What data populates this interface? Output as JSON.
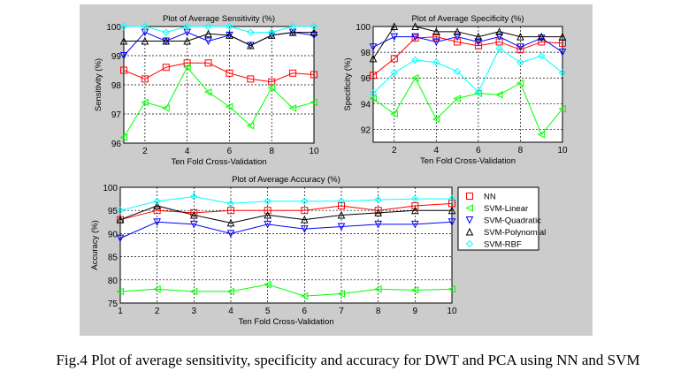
{
  "caption": "Fig.4 Plot of average sensitivity, specificity and accuracy for DWT and PCA using NN and SVM",
  "series_styles": [
    {
      "name": "NN",
      "color": "#ff0000",
      "marker": "square"
    },
    {
      "name": "SVM-Linear",
      "color": "#00ff00",
      "marker": "triangle-left"
    },
    {
      "name": "SVM-Quadratic",
      "color": "#0000ff",
      "marker": "triangle-down"
    },
    {
      "name": "SVM-Polynomial",
      "color": "#000000",
      "marker": "triangle-up"
    },
    {
      "name": "SVM-RBF",
      "color": "#00ffff",
      "marker": "diamond"
    }
  ],
  "colors": {
    "figure_background": "#cccccc",
    "axes_background": "#ffffff"
  },
  "chart_data": [
    {
      "type": "line",
      "title": "Plot of Average Sensitivity (%)",
      "xlabel": "Ten Fold Cross-Validation",
      "ylabel": "Sensitivity (%)",
      "xlim": [
        1,
        10
      ],
      "ylim": [
        96,
        100
      ],
      "xticks": [
        2,
        4,
        6,
        8,
        10
      ],
      "yticks": [
        96,
        97,
        98,
        99,
        100
      ],
      "grid": true,
      "x": [
        1,
        2,
        3,
        4,
        5,
        6,
        7,
        8,
        9,
        10
      ],
      "series": [
        {
          "name": "NN",
          "values": [
            98.5,
            98.2,
            98.6,
            98.75,
            98.75,
            98.4,
            98.2,
            98.1,
            98.4,
            98.35
          ]
        },
        {
          "name": "SVM-Linear",
          "values": [
            96.2,
            97.4,
            97.2,
            98.6,
            97.75,
            97.25,
            96.6,
            97.9,
            97.2,
            97.4
          ]
        },
        {
          "name": "SVM-Quadratic",
          "values": [
            99.0,
            99.8,
            99.5,
            99.8,
            99.5,
            99.7,
            99.35,
            99.7,
            99.8,
            99.7
          ]
        },
        {
          "name": "SVM-Polynomial",
          "values": [
            99.5,
            99.5,
            99.5,
            99.5,
            99.75,
            99.7,
            99.35,
            99.7,
            99.8,
            99.8
          ]
        },
        {
          "name": "SVM-RBF",
          "values": [
            100,
            100,
            99.8,
            100,
            100,
            100,
            99.8,
            99.8,
            100,
            100
          ]
        }
      ]
    },
    {
      "type": "line",
      "title": "Plot of Average Specificity (%)",
      "xlabel": "Ten Fold Cross-Validation",
      "ylabel": "Specificity (%)",
      "xlim": [
        1,
        10
      ],
      "ylim": [
        91,
        100
      ],
      "xticks": [
        2,
        4,
        6,
        8,
        10
      ],
      "yticks": [
        92,
        94,
        96,
        98,
        100
      ],
      "grid": true,
      "x": [
        1,
        2,
        3,
        4,
        5,
        6,
        7,
        8,
        9,
        10
      ],
      "series": [
        {
          "name": "NN",
          "values": [
            96.2,
            97.5,
            99.1,
            99.2,
            98.8,
            98.5,
            98.8,
            98.2,
            98.8,
            98.7
          ]
        },
        {
          "name": "SVM-Linear",
          "values": [
            94.4,
            93.2,
            96.0,
            92.8,
            94.4,
            94.8,
            94.7,
            95.6,
            91.6,
            93.6
          ]
        },
        {
          "name": "SVM-Quadratic",
          "values": [
            98.4,
            99.2,
            99.2,
            98.8,
            99.2,
            98.8,
            99.2,
            98.4,
            99.1,
            98.0
          ]
        },
        {
          "name": "SVM-Polynomial",
          "values": [
            97.5,
            100,
            100,
            99.6,
            99.6,
            99.2,
            99.6,
            99.2,
            99.2,
            99.2
          ]
        },
        {
          "name": "SVM-RBF",
          "values": [
            94.8,
            96.4,
            97.4,
            97.2,
            96.5,
            94.9,
            98.3,
            97.2,
            97.7,
            96.4
          ]
        }
      ]
    },
    {
      "type": "line",
      "title": "Plot of Average Accuracy (%)",
      "xlabel": "Ten Fold Cross-Validation",
      "ylabel": "Accuracy (%)",
      "xlim": [
        1,
        10
      ],
      "ylim": [
        75,
        100
      ],
      "xticks": [
        1,
        2,
        3,
        4,
        5,
        6,
        7,
        8,
        9,
        10
      ],
      "yticks": [
        75,
        80,
        85,
        90,
        95,
        100
      ],
      "grid": true,
      "legend": "right",
      "x": [
        1,
        2,
        3,
        4,
        5,
        6,
        7,
        8,
        9,
        10
      ],
      "series": [
        {
          "name": "NN",
          "values": [
            93,
            95,
            94.5,
            95,
            95,
            95,
            96,
            95,
            96,
            96.5
          ]
        },
        {
          "name": "SVM-Linear",
          "values": [
            77.5,
            78,
            77.5,
            77.5,
            79,
            76.5,
            77,
            78,
            77.8,
            78
          ]
        },
        {
          "name": "SVM-Quadratic",
          "values": [
            89,
            92.5,
            92,
            90,
            92,
            91,
            91.5,
            92,
            92,
            92.5
          ]
        },
        {
          "name": "SVM-Polynomial",
          "values": [
            93,
            96,
            94,
            92.3,
            94,
            93,
            94,
            94.5,
            95,
            95
          ]
        },
        {
          "name": "SVM-RBF",
          "values": [
            95,
            97,
            98,
            96.5,
            97,
            97,
            97,
            97.3,
            97.5,
            97.5
          ]
        }
      ]
    }
  ]
}
